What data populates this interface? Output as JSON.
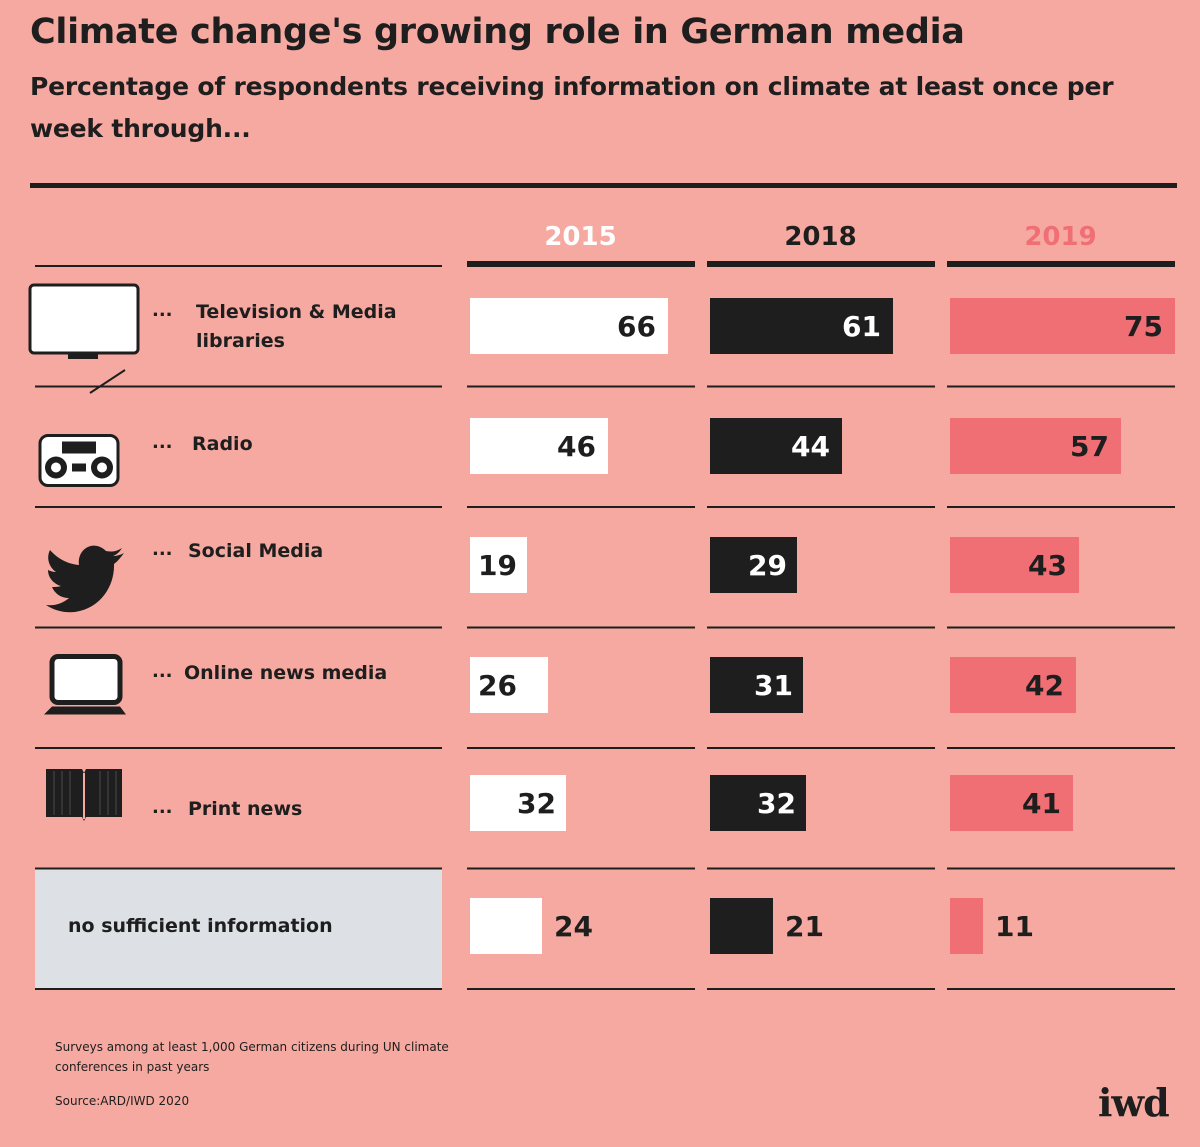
{
  "header": {
    "title": "Climate change's growing role in German media",
    "subtitle": "Percentage of respondents receiving information on climate at least once per week through..."
  },
  "footer": {
    "note": "Surveys among at least 1,000 German citizens during UN climate conferences in past years",
    "source": "Source:ARD/IWD 2020",
    "logo": "iwd"
  },
  "colors": {
    "background": "#f6a9a0",
    "series_2015": "#ffffff",
    "series_2018": "#1e1e1e",
    "series_2019": "#ef6f75",
    "highlight_row": "#dde1e6"
  },
  "chart_data": {
    "type": "bar",
    "orientation": "horizontal",
    "categories": [
      "Television & Media libraries",
      "Radio",
      "Social Media",
      "Online news media",
      "Print news",
      "no sufficient information"
    ],
    "category_icons": [
      "television-icon",
      "radio-icon",
      "twitter-bird-icon",
      "laptop-icon",
      "book-icon",
      ""
    ],
    "series": [
      {
        "name": "2015",
        "values": [
          66,
          46,
          19,
          26,
          32,
          24
        ]
      },
      {
        "name": "2018",
        "values": [
          61,
          44,
          29,
          31,
          32,
          21
        ]
      },
      {
        "name": "2019",
        "values": [
          75,
          57,
          43,
          42,
          41,
          11
        ]
      }
    ],
    "xlim": [
      0,
      75
    ],
    "grid": false,
    "legend": "column headers"
  }
}
